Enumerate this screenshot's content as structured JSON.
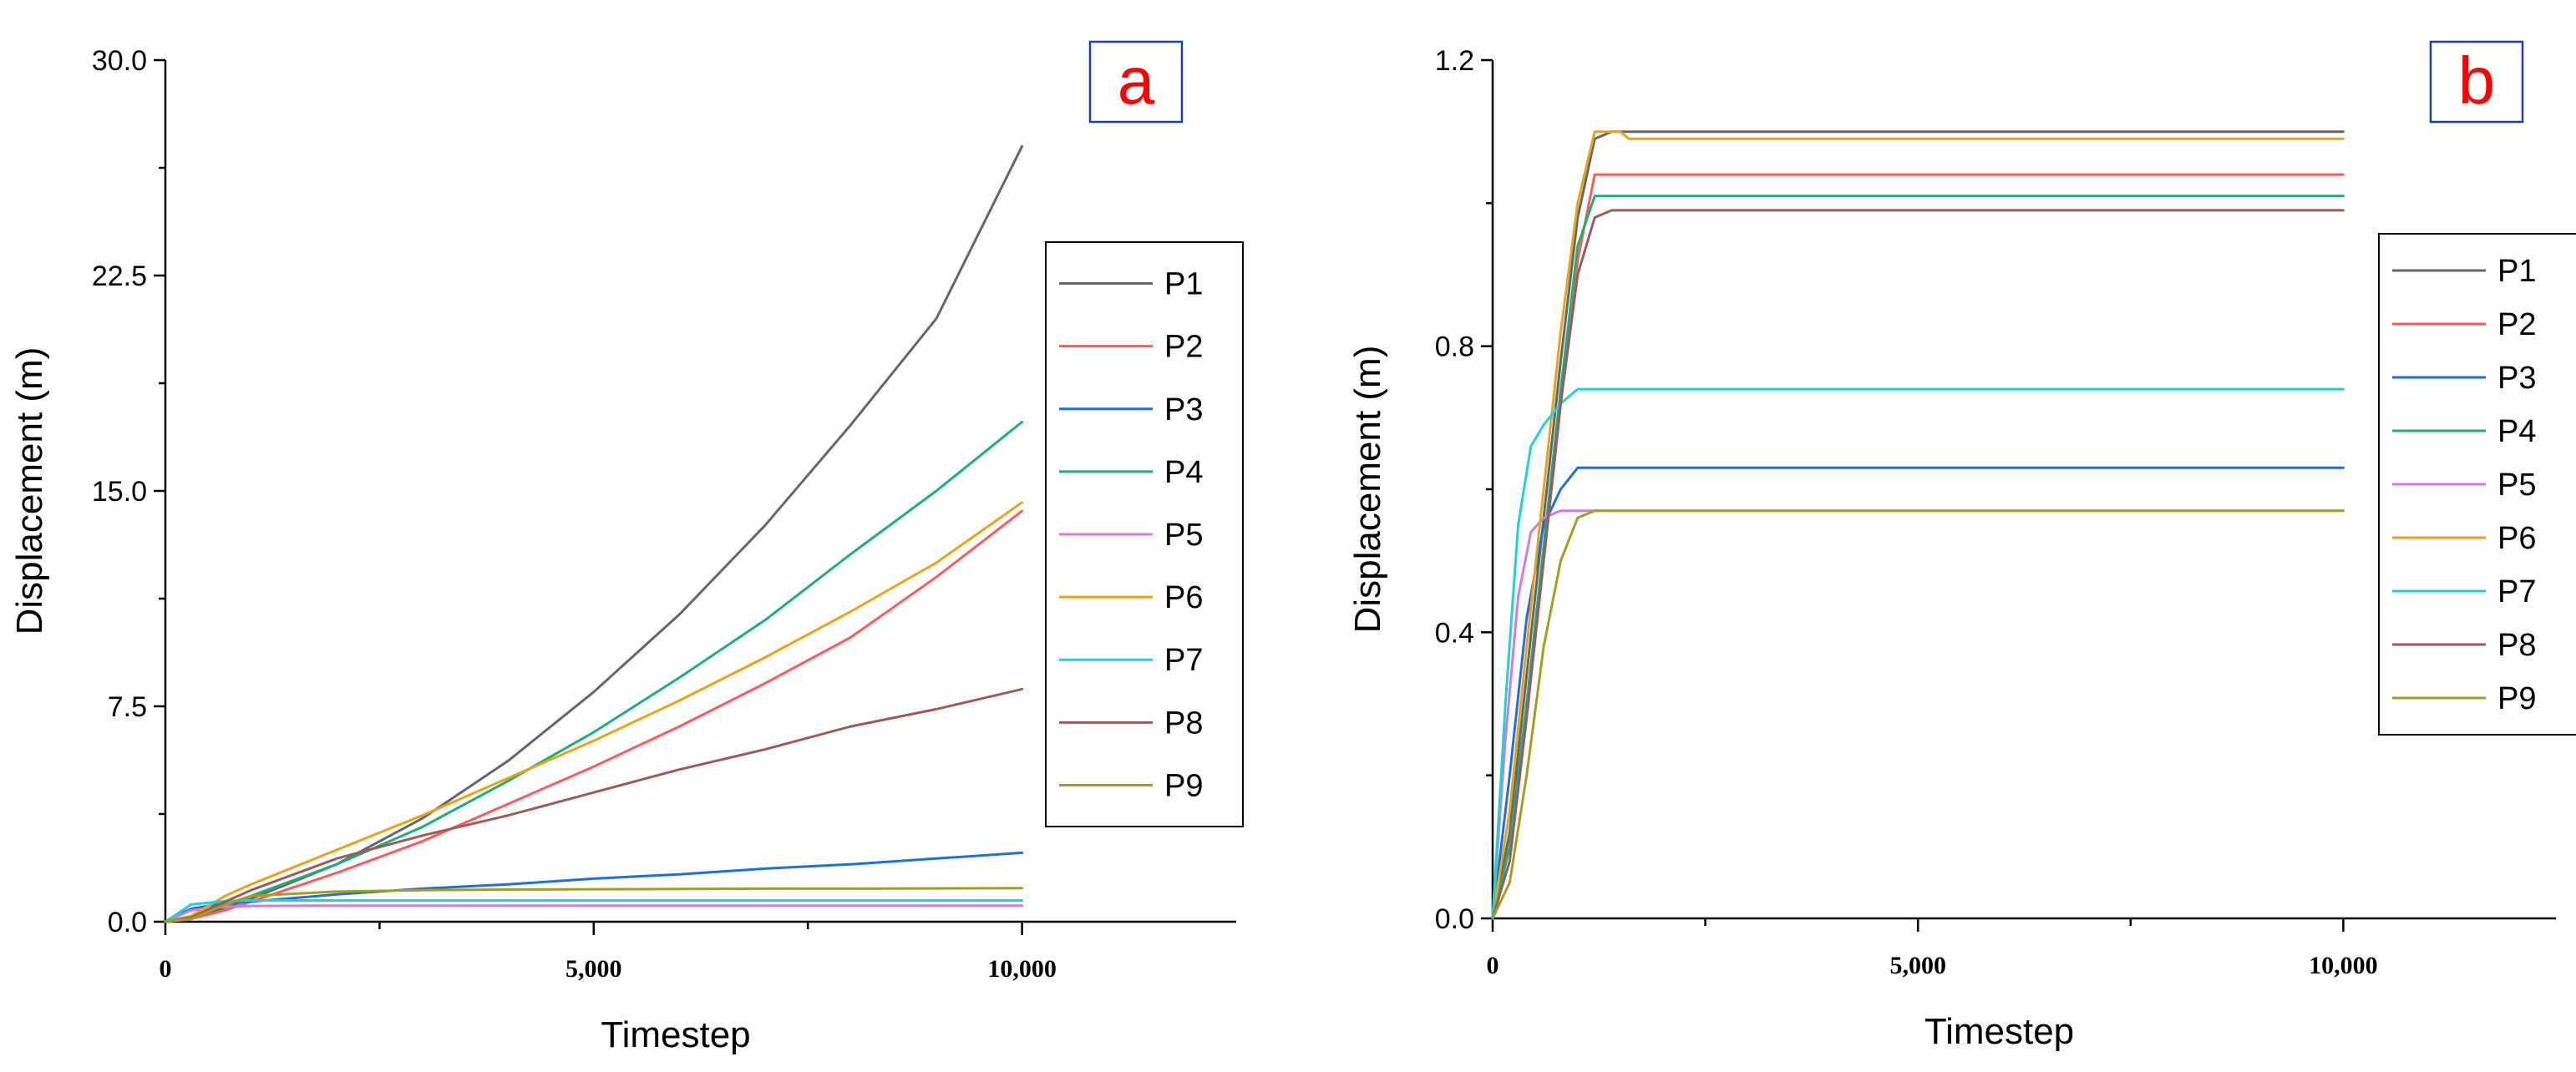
{
  "chart_data": [
    {
      "type": "line",
      "panel_label": "a",
      "xlabel": "Timestep",
      "ylabel": "Displacement (m)",
      "xlim": [
        0,
        12500
      ],
      "ylim": [
        0,
        30
      ],
      "xticks": [
        0,
        5000,
        10000
      ],
      "xtick_labels": [
        "0",
        "5,000",
        "10,000"
      ],
      "yticks": [
        0,
        7.5,
        15,
        22.5,
        30
      ],
      "ytick_labels": [
        "0.0",
        "7.5",
        "15.0",
        "22.5",
        "30.0"
      ],
      "legend_position": "right",
      "series": [
        {
          "name": "P1",
          "color": "#666666",
          "x": [
            0,
            300,
            700,
            1000,
            2000,
            3000,
            4000,
            5000,
            6000,
            7000,
            8000,
            9000,
            10000
          ],
          "y": [
            0,
            0.1,
            0.5,
            0.8,
            2.0,
            3.6,
            5.6,
            8.0,
            10.7,
            13.8,
            17.3,
            21.0,
            27.0
          ]
        },
        {
          "name": "P2",
          "color": "#ff5a5a",
          "x": [
            0,
            300,
            700,
            1000,
            2000,
            3000,
            4000,
            5000,
            6000,
            7000,
            8000,
            9000,
            10000
          ],
          "y": [
            0,
            0.1,
            0.4,
            0.7,
            1.7,
            2.8,
            4.1,
            5.4,
            6.8,
            8.3,
            9.9,
            12.0,
            14.3
          ]
        },
        {
          "name": "P3",
          "color": "#1f6fdc",
          "x": [
            0,
            300,
            700,
            1000,
            2000,
            3000,
            4000,
            5000,
            6000,
            7000,
            8000,
            9000,
            10000
          ],
          "y": [
            0,
            0.45,
            0.65,
            0.7,
            0.95,
            1.15,
            1.3,
            1.5,
            1.65,
            1.85,
            2.0,
            2.2,
            2.4
          ]
        },
        {
          "name": "P4",
          "color": "#1fae75",
          "x": [
            0,
            300,
            700,
            1000,
            2000,
            3000,
            4000,
            5000,
            6000,
            7000,
            8000,
            9000,
            10000
          ],
          "y": [
            0,
            0.1,
            0.6,
            0.9,
            2.0,
            3.3,
            4.9,
            6.6,
            8.5,
            10.5,
            12.8,
            15.0,
            17.4
          ]
        },
        {
          "name": "P5",
          "color": "#d07ae6",
          "x": [
            0,
            300,
            700,
            1000,
            2000,
            3000,
            4000,
            5000,
            6000,
            7000,
            8000,
            9000,
            10000
          ],
          "y": [
            0,
            0.4,
            0.52,
            0.55,
            0.56,
            0.56,
            0.56,
            0.56,
            0.56,
            0.56,
            0.56,
            0.56,
            0.56
          ]
        },
        {
          "name": "P6",
          "color": "#e8a31c",
          "x": [
            0,
            300,
            700,
            1000,
            2000,
            3000,
            4000,
            5000,
            6000,
            7000,
            8000,
            9000,
            10000
          ],
          "y": [
            0,
            0.2,
            0.9,
            1.3,
            2.5,
            3.7,
            5.0,
            6.3,
            7.7,
            9.2,
            10.8,
            12.5,
            14.6
          ]
        },
        {
          "name": "P7",
          "color": "#1fd3d3",
          "x": [
            0,
            300,
            700,
            1000,
            2000,
            3000,
            4000,
            5000,
            6000,
            7000,
            8000,
            9000,
            10000
          ],
          "y": [
            0,
            0.6,
            0.72,
            0.74,
            0.74,
            0.74,
            0.74,
            0.74,
            0.74,
            0.74,
            0.74,
            0.74,
            0.74
          ]
        },
        {
          "name": "P8",
          "color": "#9c5a5a",
          "x": [
            0,
            300,
            700,
            1000,
            2000,
            3000,
            4000,
            5000,
            6000,
            7000,
            8000,
            9000,
            10000
          ],
          "y": [
            0,
            0.15,
            0.7,
            1.1,
            2.2,
            3.0,
            3.7,
            4.5,
            5.3,
            6.0,
            6.8,
            7.4,
            8.1
          ]
        },
        {
          "name": "P9",
          "color": "#a0a01f",
          "x": [
            0,
            300,
            700,
            1000,
            2000,
            3000,
            4000,
            5000,
            6000,
            7000,
            8000,
            9000,
            10000
          ],
          "y": [
            0,
            0.1,
            0.6,
            0.9,
            1.05,
            1.1,
            1.12,
            1.13,
            1.14,
            1.15,
            1.15,
            1.16,
            1.17
          ]
        }
      ]
    },
    {
      "type": "line",
      "panel_label": "b",
      "xlabel": "Timestep",
      "ylabel": "Displacement (m)",
      "xlim": [
        0,
        12500
      ],
      "ylim": [
        0,
        1.2
      ],
      "xticks": [
        0,
        5000,
        10000
      ],
      "xtick_labels": [
        "0",
        "5,000",
        "10,000"
      ],
      "yticks": [
        0,
        0.4,
        0.8,
        1.2
      ],
      "ytick_labels": [
        "0.0",
        "0.4",
        "0.8",
        "1.2"
      ],
      "legend_position": "right",
      "series": [
        {
          "name": "P1",
          "color": "#666666",
          "x": [
            0,
            200,
            400,
            600,
            800,
            1000,
            1200,
            1400,
            10000
          ],
          "y": [
            0,
            0.12,
            0.34,
            0.56,
            0.78,
            0.98,
            1.09,
            1.1,
            1.1
          ]
        },
        {
          "name": "P2",
          "color": "#ff5a5a",
          "x": [
            0,
            200,
            400,
            600,
            800,
            1000,
            1200,
            1400,
            10000
          ],
          "y": [
            0,
            0.1,
            0.3,
            0.5,
            0.72,
            0.92,
            1.04,
            1.04,
            1.04
          ]
        },
        {
          "name": "P3",
          "color": "#1f6fdc",
          "x": [
            0,
            200,
            400,
            600,
            800,
            1000,
            1200,
            10000
          ],
          "y": [
            0,
            0.2,
            0.42,
            0.55,
            0.6,
            0.63,
            0.63,
            0.63
          ]
        },
        {
          "name": "P4",
          "color": "#1fae75",
          "x": [
            0,
            200,
            400,
            600,
            800,
            1000,
            1200,
            1400,
            10000
          ],
          "y": [
            0,
            0.1,
            0.3,
            0.52,
            0.74,
            0.94,
            1.01,
            1.01,
            1.01
          ]
        },
        {
          "name": "P5",
          "color": "#d07ae6",
          "x": [
            0,
            150,
            300,
            450,
            600,
            800,
            10000
          ],
          "y": [
            0,
            0.25,
            0.45,
            0.54,
            0.56,
            0.57,
            0.57
          ]
        },
        {
          "name": "P6",
          "color": "#e8a31c",
          "x": [
            0,
            200,
            400,
            600,
            800,
            1000,
            1200,
            1500,
            1600,
            10000
          ],
          "y": [
            0,
            0.15,
            0.38,
            0.6,
            0.82,
            1.0,
            1.1,
            1.1,
            1.09,
            1.09
          ]
        },
        {
          "name": "P7",
          "color": "#1fd3d3",
          "x": [
            0,
            150,
            300,
            450,
            600,
            800,
            1000,
            1200,
            10000
          ],
          "y": [
            0,
            0.3,
            0.55,
            0.66,
            0.69,
            0.72,
            0.74,
            0.74,
            0.74
          ]
        },
        {
          "name": "P8",
          "color": "#9c5a5a",
          "x": [
            0,
            200,
            400,
            600,
            800,
            1000,
            1200,
            1400,
            10000
          ],
          "y": [
            0,
            0.08,
            0.28,
            0.5,
            0.72,
            0.9,
            0.98,
            0.99,
            0.99
          ]
        },
        {
          "name": "P9",
          "color": "#a0a01f",
          "x": [
            0,
            200,
            400,
            600,
            800,
            1000,
            1200,
            10000
          ],
          "y": [
            0,
            0.05,
            0.2,
            0.38,
            0.5,
            0.56,
            0.57,
            0.57
          ]
        }
      ]
    }
  ]
}
